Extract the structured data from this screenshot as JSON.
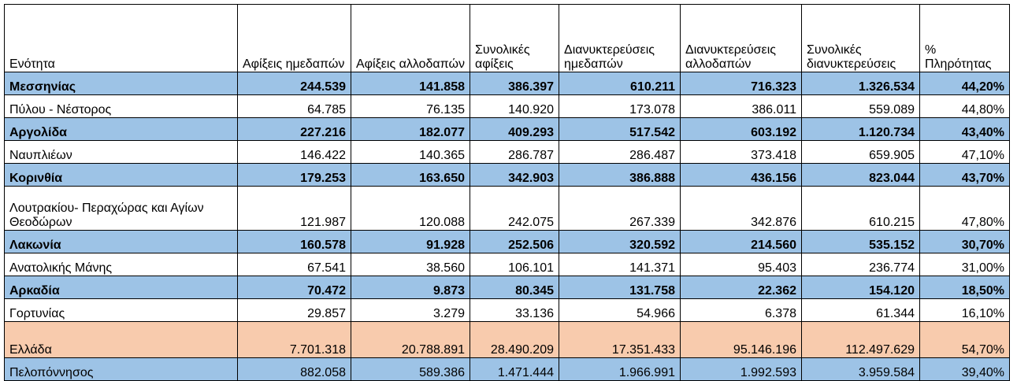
{
  "headers": [
    "Ενότητα",
    "Αφίξεις ημεδαπών",
    "Αφίξεις αλλοδαπών",
    "Συνολικές αφίξεις",
    "Διανυκτερεύσεις ημεδαπών",
    "Διανυκτερεύσεις αλλοδαπών",
    "Συνολικές διανυκτερεύσεις",
    "% Πληρότητας"
  ],
  "rows": [
    {
      "style": "blue",
      "cells": [
        "Μεσσηνίας",
        "244.539",
        "141.858",
        "386.397",
        "610.211",
        "716.323",
        "1.326.534",
        "44,20%"
      ]
    },
    {
      "style": "white",
      "cells": [
        "Πύλου - Νέστορος",
        "64.785",
        "76.135",
        "140.920",
        "173.078",
        "386.011",
        "559.089",
        "44,80%"
      ]
    },
    {
      "style": "blue",
      "cells": [
        "Αργολίδα",
        "227.216",
        "182.077",
        "409.293",
        "517.542",
        "603.192",
        "1.120.734",
        "43,40%"
      ]
    },
    {
      "style": "white",
      "cells": [
        "Ναυπλιέων",
        "146.422",
        "140.365",
        "286.787",
        "286.487",
        "373.418",
        "659.905",
        "47,10%"
      ]
    },
    {
      "style": "blue",
      "cells": [
        "Κορινθία",
        "179.253",
        "163.650",
        "342.903",
        "386.888",
        "436.156",
        "823.044",
        "43,70%"
      ]
    },
    {
      "style": "white",
      "cells": [
        "Λουτρακίου- Περαχώρας και Αγίων Θεοδώρων",
        "121.987",
        "120.088",
        "242.075",
        "267.339",
        "342.876",
        "610.215",
        "47,80%"
      ]
    },
    {
      "style": "blue",
      "cells": [
        "Λακωνία",
        "160.578",
        "91.928",
        "252.506",
        "320.592",
        "214.560",
        "535.152",
        "30,70%"
      ]
    },
    {
      "style": "white",
      "cells": [
        "Ανατολικής Μάνης",
        "67.541",
        "38.560",
        "106.101",
        "141.371",
        "95.403",
        "236.774",
        "31,00%"
      ]
    },
    {
      "style": "blue",
      "cells": [
        "Αρκαδία",
        "70.472",
        "9.873",
        "80.345",
        "131.758",
        "22.362",
        "154.120",
        "18,50%"
      ]
    },
    {
      "style": "white",
      "cells": [
        "Γορτυνίας",
        "29.857",
        "3.279",
        "33.136",
        "54.966",
        "6.378",
        "61.344",
        "16,10%"
      ]
    },
    {
      "style": "salmon",
      "cells": [
        "Ελλάδα",
        "7.701.318",
        "20.788.891",
        "28.490.209",
        "17.351.433",
        "95.146.196",
        "112.497.629",
        "54,70%"
      ]
    },
    {
      "style": "blue2",
      "cells": [
        "Πελοπόννησος",
        "882.058",
        "589.386",
        "1.471.444",
        "1.966.991",
        "1.992.593",
        "3.959.584",
        "39,40%"
      ]
    }
  ],
  "colors": {
    "blue": "#9dc3e6",
    "salmon": "#f8cbad",
    "white": "#ffffff"
  }
}
